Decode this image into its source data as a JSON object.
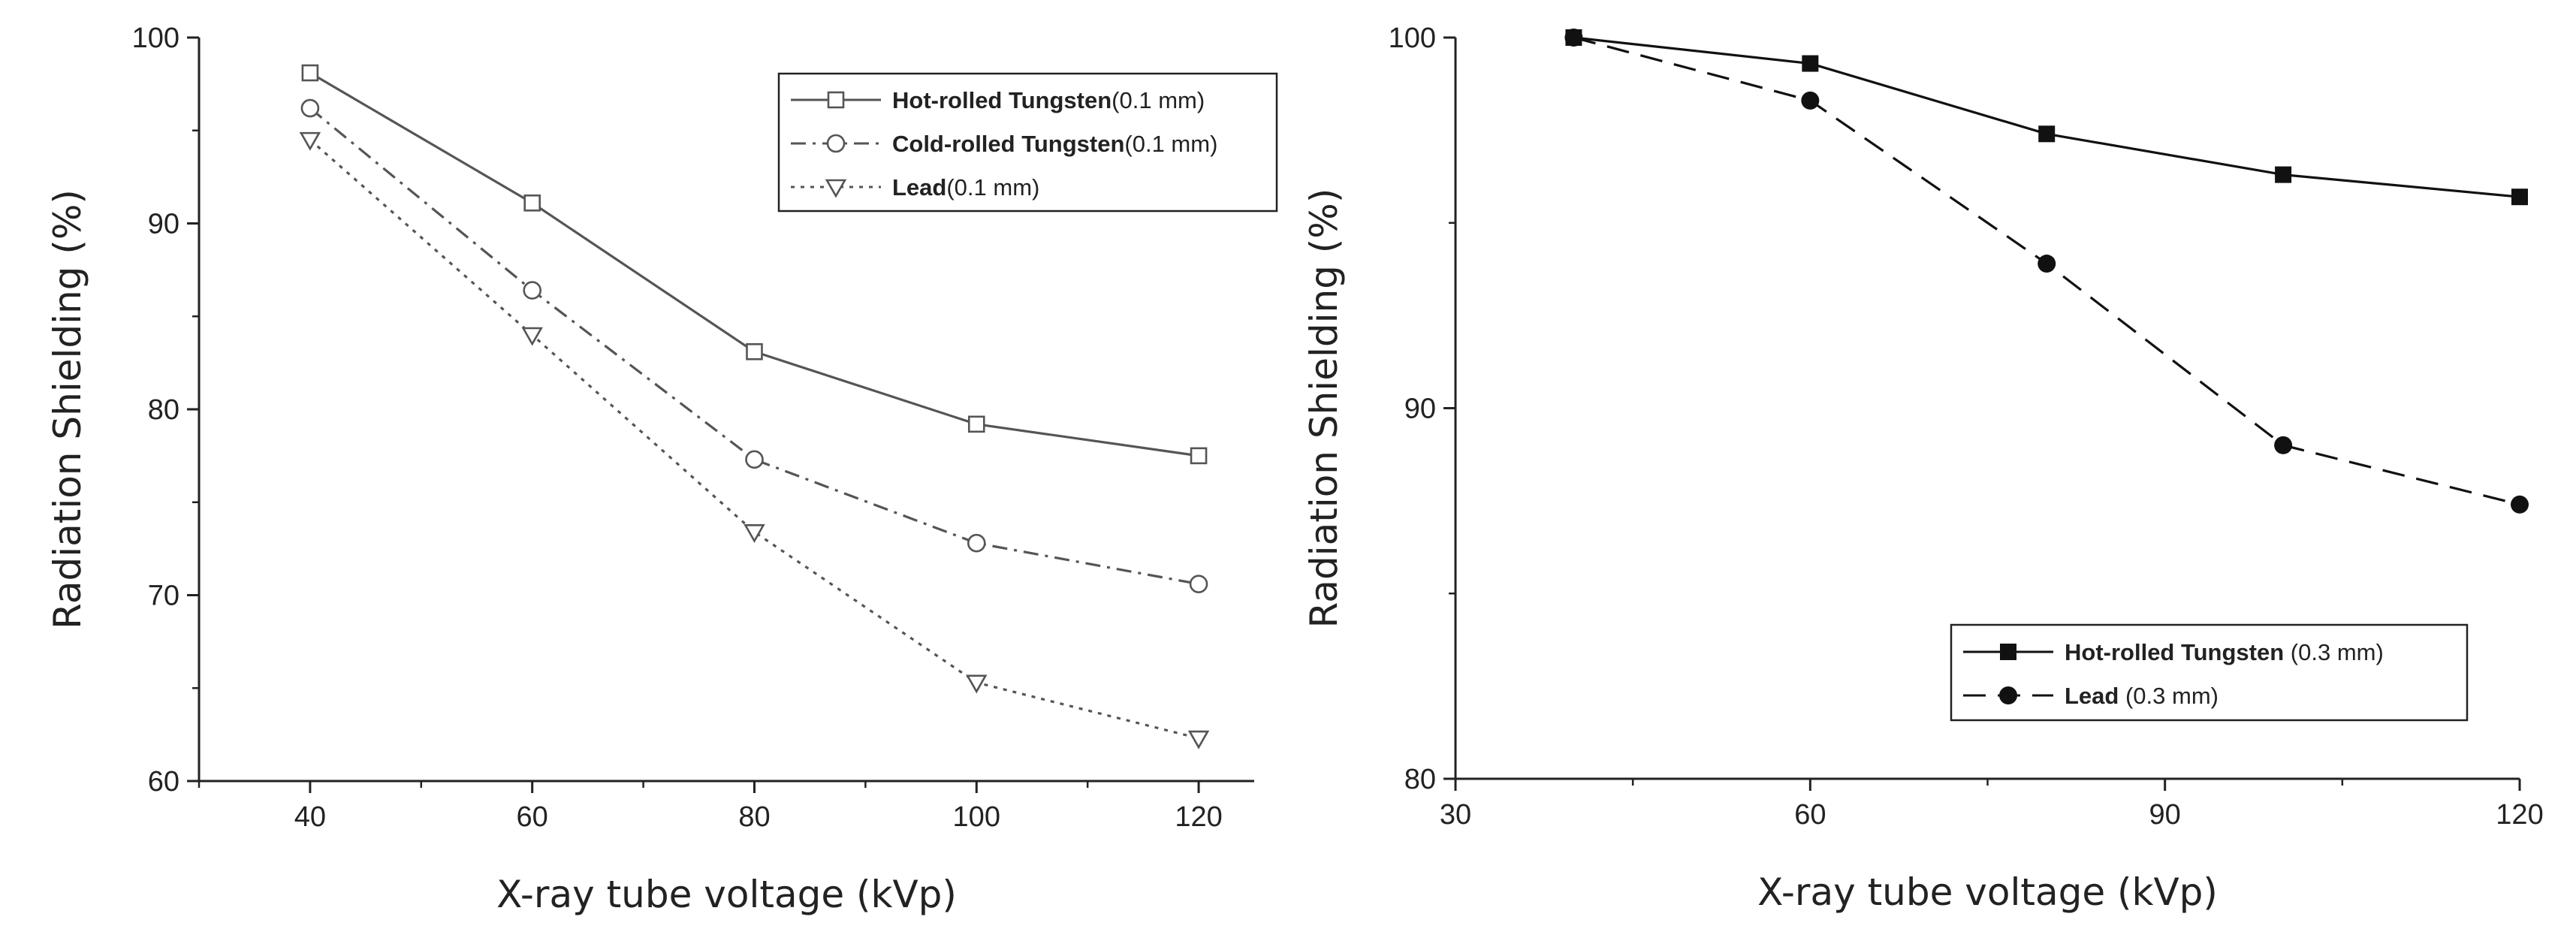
{
  "chart_data": [
    {
      "type": "line",
      "title": "",
      "xlabel": "X-ray tube voltage (kVp)",
      "ylabel": "Radiation Shielding (%)",
      "xlim": [
        30,
        125
      ],
      "ylim": [
        60,
        100
      ],
      "xticks": [
        "40",
        "60",
        "80",
        "100",
        "120"
      ],
      "yticks": [
        "60",
        "70",
        "80",
        "90",
        "100"
      ],
      "x": [
        40,
        60,
        80,
        100,
        120
      ],
      "series": [
        {
          "name": "Hot-rolled Tungsten",
          "name_suffix": "(0.1 mm)",
          "values": [
            98.1,
            91.1,
            83.1,
            79.2,
            77.5
          ],
          "marker": "square-open",
          "line": "solid",
          "color": "#555555"
        },
        {
          "name": "Cold-rolled Tungsten",
          "name_suffix": "(0.1 mm)",
          "values": [
            96.2,
            86.4,
            77.3,
            72.8,
            70.6
          ],
          "marker": "circle-open",
          "line": "dashdot",
          "color": "#555555"
        },
        {
          "name": "Lead",
          "name_suffix": "(0.1 mm)",
          "values": [
            94.5,
            84.0,
            73.4,
            65.3,
            62.3
          ],
          "marker": "triangle-down-open",
          "line": "dotted",
          "color": "#555555"
        }
      ],
      "legend_position": "top-right"
    },
    {
      "type": "line",
      "title": "",
      "xlabel": "X-ray tube voltage (kVp)",
      "ylabel": "Radiation Shielding (%)",
      "xlim": [
        30,
        120
      ],
      "ylim": [
        80,
        100
      ],
      "xticks": [
        "30",
        "60",
        "90",
        "120"
      ],
      "yticks": [
        "80",
        "90",
        "100"
      ],
      "x": [
        40,
        60,
        80,
        100,
        120
      ],
      "series": [
        {
          "name": "Hot-rolled Tungsten",
          "name_suffix": " (0.3 mm)",
          "values": [
            100.0,
            99.3,
            97.4,
            96.3,
            95.7
          ],
          "marker": "square-filled",
          "line": "solid",
          "color": "#111111"
        },
        {
          "name": "Lead",
          "name_suffix": " (0.3 mm)",
          "values": [
            100.0,
            98.3,
            93.9,
            89.0,
            87.4
          ],
          "marker": "circle-filled",
          "line": "dashed",
          "color": "#111111"
        }
      ],
      "legend_position": "bottom-right"
    }
  ]
}
